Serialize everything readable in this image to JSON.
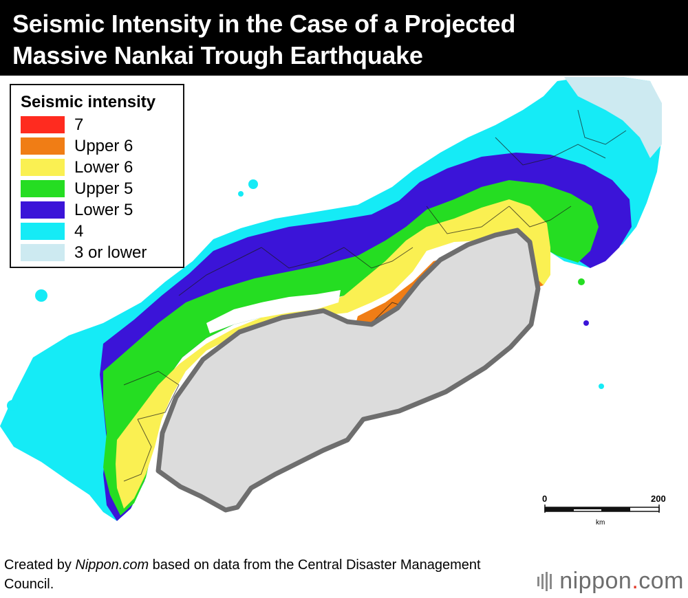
{
  "title": {
    "line1": "Seismic Intensity in the Case of a Projected",
    "line2": "Massive Nankai Trough Earthquake"
  },
  "legend": {
    "title": "Seismic intensity",
    "items": [
      {
        "label": "7",
        "color": "#ff2b1f"
      },
      {
        "label": "Upper 6",
        "color": "#f07d15"
      },
      {
        "label": "Lower 6",
        "color": "#faf052"
      },
      {
        "label": "Upper 5",
        "color": "#25dd22"
      },
      {
        "label": "Lower 5",
        "color": "#3b14d8"
      },
      {
        "label": "4",
        "color": "#15ebf6"
      },
      {
        "label": "3 or lower",
        "color": "#cdeaf1"
      }
    ]
  },
  "map": {
    "trough_fill": "#dcdcdc",
    "trough_outline": "#6e6e6e",
    "scale_bar": {
      "start_label": "0",
      "end_label": "200",
      "unit": "km"
    }
  },
  "footer": {
    "prefix": "Created by ",
    "site": "Nippon.com",
    "suffix": " based on data from the Central Disaster Management Council."
  },
  "brand": {
    "name": "nippon",
    "dot": ".",
    "tld": "com"
  }
}
